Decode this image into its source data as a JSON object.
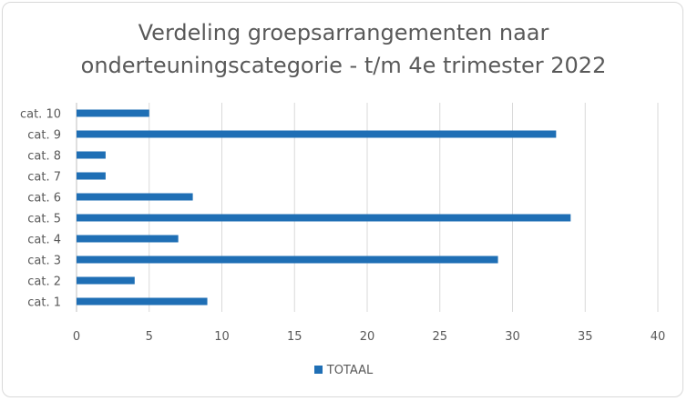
{
  "chart_data": {
    "type": "bar",
    "orientation": "horizontal",
    "title_lines": [
      "Verdeling groepsarrangementen naar",
      "onderteuningscategorie - t/m 4e trimester 2022"
    ],
    "categories": [
      "cat. 1",
      "cat. 2",
      "cat. 3",
      "cat. 4",
      "cat. 5",
      "cat. 6",
      "cat. 7",
      "cat. 8",
      "cat. 9",
      "cat. 10"
    ],
    "series": [
      {
        "name": "TOTAAL",
        "values": [
          9,
          4,
          29,
          7,
          34,
          8,
          2,
          2,
          33,
          5
        ]
      }
    ],
    "x_ticks": [
      "0",
      "5",
      "10",
      "15",
      "20",
      "25",
      "30",
      "35",
      "40"
    ],
    "xlim": [
      0,
      40
    ],
    "grid": "vertical",
    "legend_position": "bottom",
    "colors": {
      "bar": "#1f6fb5",
      "grid": "#d9d9d9",
      "text": "#595959"
    }
  }
}
